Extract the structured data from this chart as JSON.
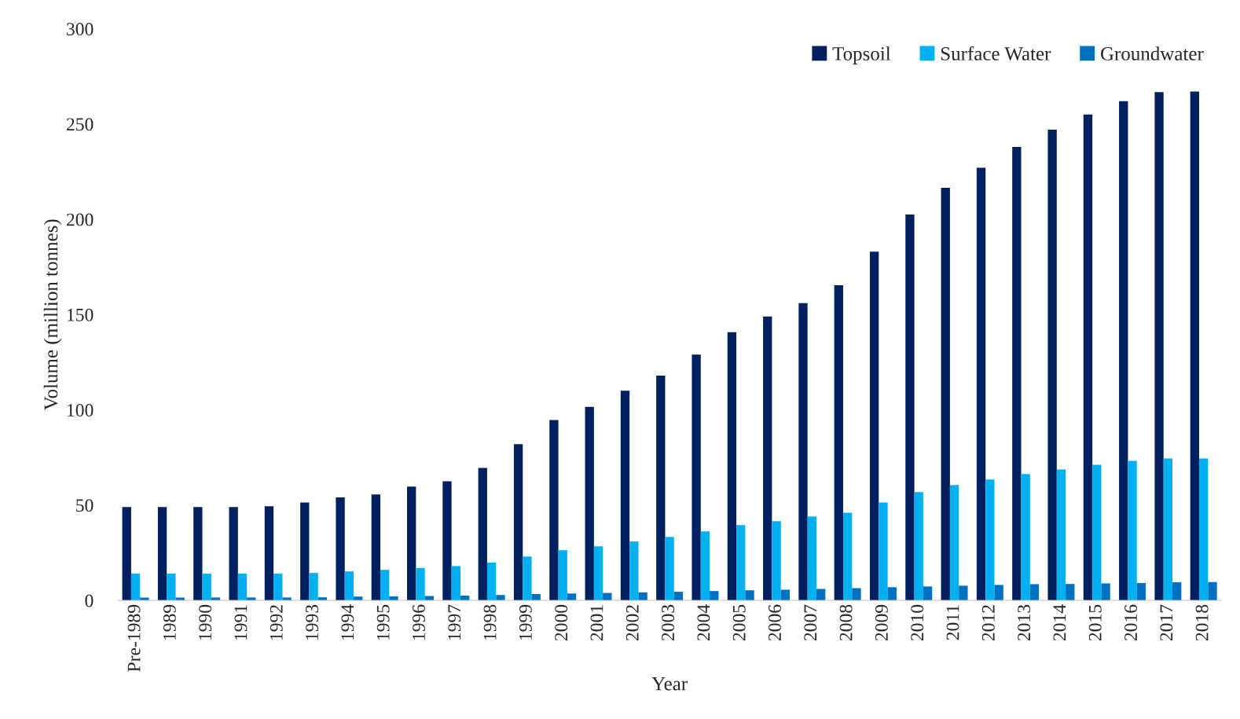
{
  "chart_data": {
    "type": "bar",
    "xlabel": "Year",
    "ylabel": "Volume (million tonnes)",
    "categories": [
      "Pre-1989",
      "1989",
      "1990",
      "1991",
      "1992",
      "1993",
      "1994",
      "1995",
      "1996",
      "1997",
      "1998",
      "1999",
      "2000",
      "2001",
      "2002",
      "2003",
      "2004",
      "2005",
      "2006",
      "2007",
      "2008",
      "2009",
      "2010",
      "2011",
      "2012",
      "2013",
      "2014",
      "2015",
      "2016",
      "2017",
      "2018"
    ],
    "series": [
      {
        "name": "Topsoil",
        "color": "#002060",
        "values": [
          49,
          49,
          49,
          49,
          49.4,
          51.4,
          54,
          55.6,
          59.7,
          62.5,
          69.5,
          82,
          94.7,
          101.6,
          110,
          118,
          129,
          140.7,
          149,
          156,
          165.4,
          183,
          202.5,
          216.5,
          227,
          238,
          247,
          255,
          262,
          266.7,
          267
        ]
      },
      {
        "name": "Surface Water",
        "color": "#00b0f0",
        "values": [
          14,
          14,
          14,
          14,
          14,
          14.4,
          15.2,
          16,
          17,
          18,
          19.8,
          23,
          26.3,
          28.4,
          30.9,
          33.3,
          36.2,
          39.5,
          41.6,
          44,
          46,
          51.4,
          56.8,
          60.5,
          63.4,
          66.3,
          68.7,
          71.2,
          73.2,
          74.5,
          74.5
        ]
      },
      {
        "name": "Groundwater",
        "color": "#0070c0",
        "values": [
          1.5,
          1.5,
          1.5,
          1.5,
          1.5,
          1.6,
          2,
          2.1,
          2.3,
          2.5,
          2.8,
          3.3,
          3.6,
          3.9,
          4.2,
          4.5,
          4.9,
          5.3,
          5.6,
          6,
          6.4,
          6.9,
          7.3,
          7.7,
          8.1,
          8.5,
          8.6,
          8.9,
          9.1,
          9.5,
          9.6
        ]
      }
    ],
    "ylim": [
      0,
      300
    ],
    "yticks": [
      0,
      50,
      100,
      150,
      200,
      250,
      300
    ],
    "grid": false,
    "legend": "top right"
  }
}
